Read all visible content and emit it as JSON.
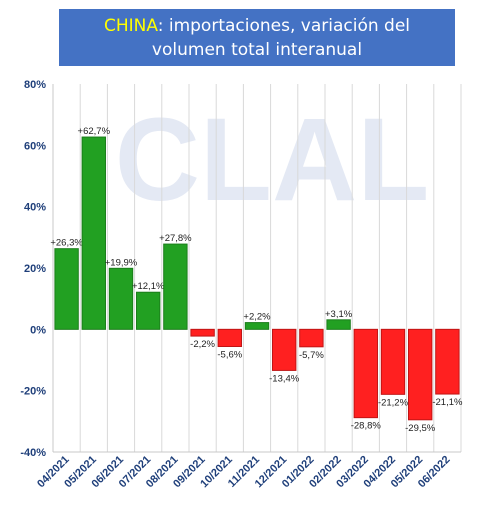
{
  "title": {
    "highlight": "CHINA",
    "rest": ": importaciones, variación del volumen total interanual"
  },
  "watermark": "CLAL",
  "colors": {
    "title_bg": "#4472c4",
    "title_text": "#ffffff",
    "title_highlight": "#ffff00",
    "positive": "#22a022",
    "positive_stroke": "#1b7d1b",
    "negative": "#ff2020",
    "negative_stroke": "#c01515",
    "axis_text": "#1f3f7a",
    "grid": "#d9d9d9",
    "watermark": "#e4e9f4"
  },
  "chart_data": {
    "type": "bar",
    "categories": [
      "04/2021",
      "05/2021",
      "06/2021",
      "07/2021",
      "08/2021",
      "09/2021",
      "10/2021",
      "11/2021",
      "12/2021",
      "01/2022",
      "02/2022",
      "03/2022",
      "04/2022",
      "05/2022",
      "06/2022"
    ],
    "values": [
      26.3,
      62.7,
      19.9,
      12.1,
      27.8,
      -2.2,
      -5.6,
      2.2,
      -13.4,
      -5.7,
      3.1,
      -28.8,
      -21.2,
      -29.5,
      -21.1
    ],
    "data_labels": [
      "+26,3%",
      "+62,7%",
      "+19,9%",
      "+12,1%",
      "+27,8%",
      "-2,2%",
      "-5,6%",
      "+2,2%",
      "-13,4%",
      "-5,7%",
      "+3,1%",
      "-28,8%",
      "-21,2%",
      "-29,5%",
      "-21,1%"
    ],
    "ylim": [
      -40,
      80
    ],
    "yticks": [
      80,
      60,
      40,
      20,
      0,
      -20,
      -40
    ],
    "ytick_labels": [
      "80%",
      "60%",
      "40%",
      "20%",
      "0%",
      "-20%",
      "-40%"
    ],
    "grid": "vertical",
    "xlabel": "",
    "ylabel": ""
  }
}
